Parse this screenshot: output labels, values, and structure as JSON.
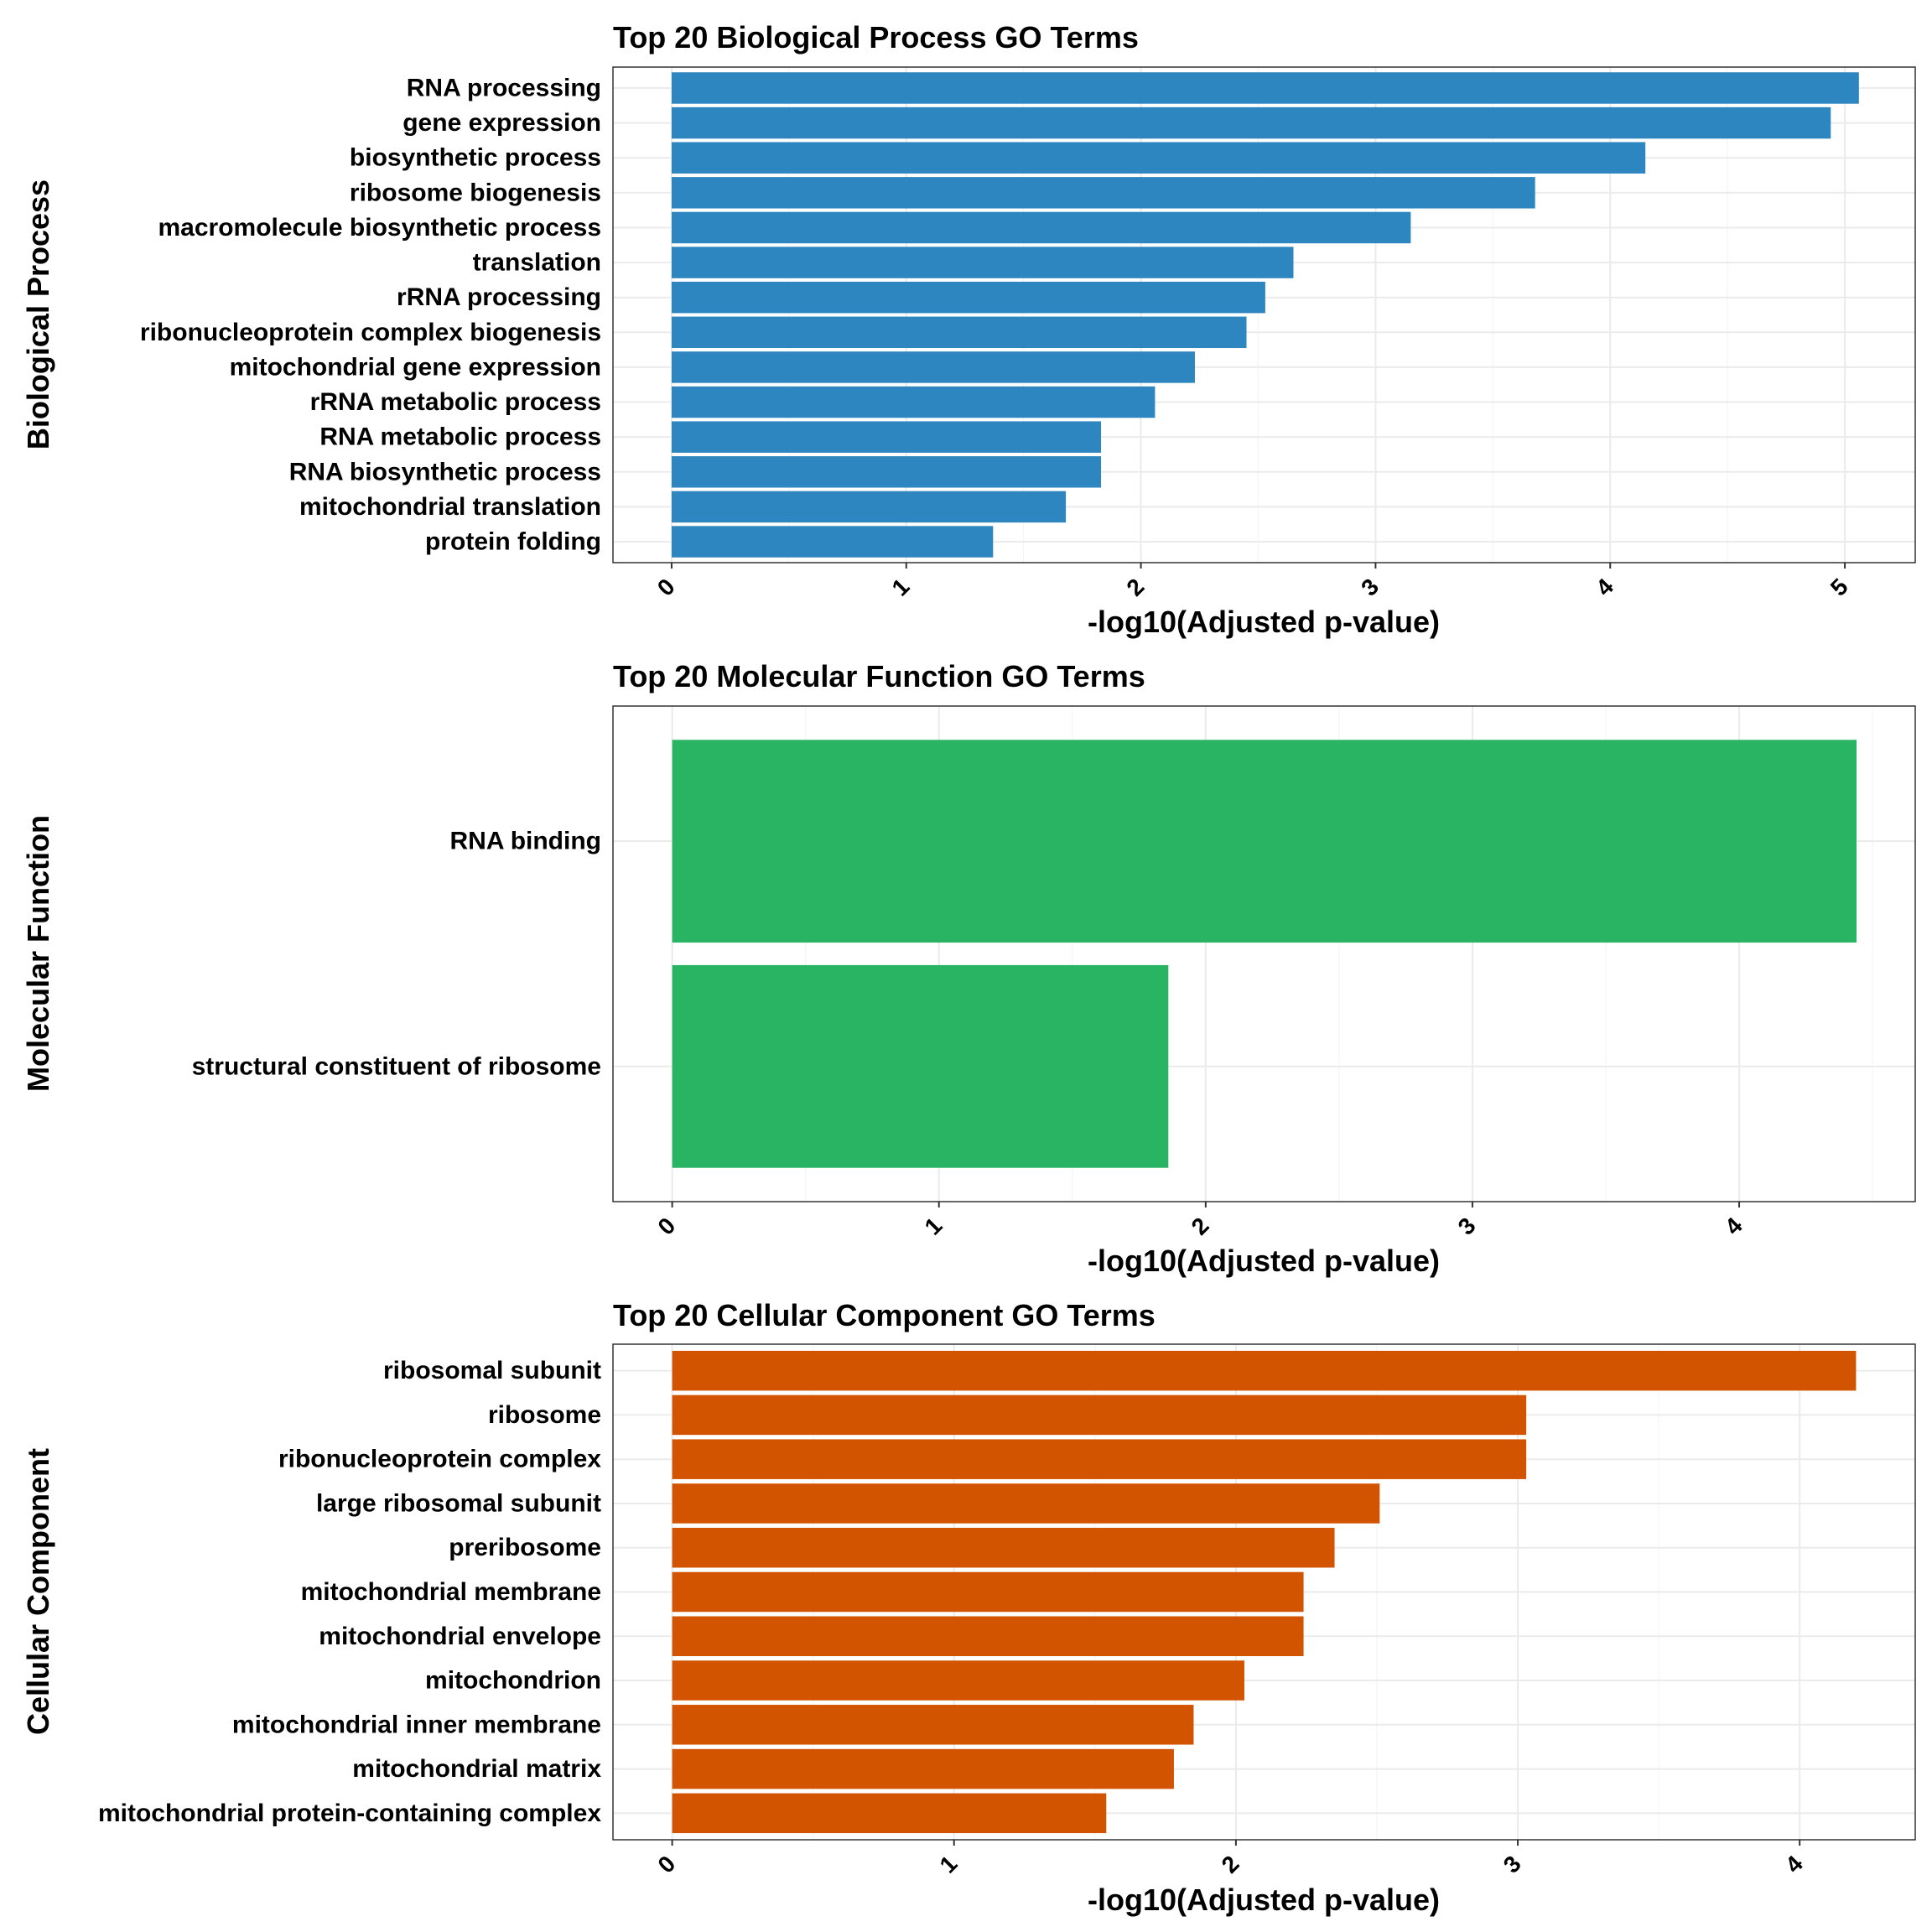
{
  "chart_data": [
    {
      "type": "bar",
      "orientation": "horizontal",
      "title": "Top 20 Biological Process GO Terms",
      "xlabel": "-log10(Adjusted p-value)",
      "ylabel": "Biological Process",
      "categories": [
        "RNA processing",
        "gene expression",
        "biosynthetic process",
        "ribosome biogenesis",
        "macromolecule biosynthetic process",
        "translation",
        "rRNA processing",
        "ribonucleoprotein complex biogenesis",
        "mitochondrial gene expression",
        "rRNA metabolic process",
        "RNA metabolic process",
        "RNA biosynthetic process",
        "mitochondrial translation",
        "protein folding"
      ],
      "values": [
        5.06,
        4.94,
        4.15,
        3.68,
        3.15,
        2.65,
        2.53,
        2.45,
        2.23,
        2.06,
        1.83,
        1.83,
        1.68,
        1.37
      ],
      "xlim": [
        -0.25,
        5.3
      ],
      "xticks": [
        0,
        1,
        2,
        3,
        4,
        5
      ],
      "color": "#2e86c1",
      "grid": true
    },
    {
      "type": "bar",
      "orientation": "horizontal",
      "title": "Top 20 Molecular Function GO Terms",
      "xlabel": "-log10(Adjusted p-value)",
      "ylabel": "Molecular Function",
      "categories": [
        "RNA binding",
        "structural constituent of ribosome"
      ],
      "values": [
        4.44,
        1.86
      ],
      "xlim": [
        -0.222,
        4.66
      ],
      "xticks": [
        0,
        1,
        2,
        3,
        4
      ],
      "color": "#28b463",
      "grid": true
    },
    {
      "type": "bar",
      "orientation": "horizontal",
      "title": "Top 20 Cellular Component GO Terms",
      "xlabel": "-log10(Adjusted p-value)",
      "ylabel": "Cellular Component",
      "categories": [
        "ribosomal subunit",
        "ribosome",
        "ribonucleoprotein complex",
        "large ribosomal subunit",
        "preribosome",
        "mitochondrial membrane",
        "mitochondrial envelope",
        "mitochondrion",
        "mitochondrial inner membrane",
        "mitochondrial matrix",
        "mitochondrial protein-containing complex"
      ],
      "values": [
        4.2,
        3.03,
        3.03,
        2.51,
        2.35,
        2.24,
        2.24,
        2.03,
        1.85,
        1.78,
        1.54
      ],
      "xlim": [
        -0.21,
        4.41
      ],
      "xticks": [
        0,
        1,
        2,
        3,
        4
      ],
      "color": "#d35400",
      "grid": true
    }
  ]
}
